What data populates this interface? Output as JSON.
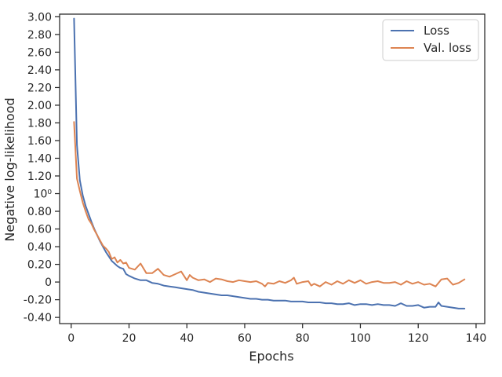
{
  "chart_data": {
    "type": "line",
    "title": "",
    "xlabel": "Epochs",
    "ylabel": "Negative log-likelihood",
    "xlim": [
      -4,
      143
    ],
    "ylim": [
      -0.47,
      3.03
    ],
    "x_ticks": [
      0,
      20,
      40,
      60,
      80,
      100,
      120,
      140
    ],
    "x_tick_labels": [
      "0",
      "20",
      "40",
      "60",
      "80",
      "100",
      "120",
      "140"
    ],
    "y_ticks": [
      -0.4,
      -0.2,
      0,
      0.2,
      0.4,
      0.6,
      0.8,
      1.0,
      1.2,
      1.4,
      1.6,
      1.8,
      2.0,
      2.2,
      2.4,
      2.6,
      2.8,
      3.0
    ],
    "y_tick_labels": [
      "-0.40",
      "-0.20",
      "0",
      "0.20",
      "0.40",
      "0.60",
      "0.80",
      "10⁰",
      "1.20",
      "1.40",
      "1.60",
      "1.80",
      "2.00",
      "2.20",
      "2.40",
      "2.60",
      "2.80",
      "3.00"
    ],
    "legend_position": "top-right",
    "grid": false,
    "series": [
      {
        "name": "Loss",
        "color": "#4c72b0",
        "x": [
          1,
          2,
          3,
          4,
          5,
          6,
          7,
          8,
          9,
          10,
          11,
          12,
          13,
          14,
          15,
          16,
          17,
          18,
          19,
          20,
          22,
          24,
          26,
          28,
          30,
          32,
          34,
          36,
          38,
          40,
          42,
          44,
          46,
          48,
          50,
          52,
          54,
          56,
          58,
          60,
          62,
          64,
          66,
          68,
          70,
          72,
          74,
          76,
          78,
          80,
          82,
          84,
          86,
          88,
          90,
          92,
          94,
          96,
          98,
          100,
          102,
          104,
          106,
          108,
          110,
          112,
          114,
          116,
          118,
          120,
          122,
          124,
          126,
          127,
          128,
          130,
          132,
          134,
          136
        ],
        "y": [
          2.98,
          1.55,
          1.15,
          0.98,
          0.86,
          0.77,
          0.68,
          0.6,
          0.53,
          0.46,
          0.4,
          0.34,
          0.29,
          0.24,
          0.21,
          0.18,
          0.16,
          0.15,
          0.09,
          0.07,
          0.04,
          0.02,
          0.02,
          -0.01,
          -0.02,
          -0.04,
          -0.05,
          -0.06,
          -0.07,
          -0.08,
          -0.09,
          -0.11,
          -0.12,
          -0.13,
          -0.14,
          -0.15,
          -0.15,
          -0.16,
          -0.17,
          -0.18,
          -0.19,
          -0.19,
          -0.2,
          -0.2,
          -0.21,
          -0.21,
          -0.21,
          -0.22,
          -0.22,
          -0.22,
          -0.23,
          -0.23,
          -0.23,
          -0.24,
          -0.24,
          -0.25,
          -0.25,
          -0.24,
          -0.26,
          -0.25,
          -0.25,
          -0.26,
          -0.25,
          -0.26,
          -0.26,
          -0.27,
          -0.24,
          -0.27,
          -0.27,
          -0.26,
          -0.29,
          -0.28,
          -0.28,
          -0.23,
          -0.27,
          -0.28,
          -0.29,
          -0.3,
          -0.3
        ]
      },
      {
        "name": "Val. loss",
        "color": "#dd8452",
        "x": [
          1,
          2,
          3,
          4,
          5,
          6,
          7,
          8,
          9,
          10,
          11,
          12,
          13,
          14,
          15,
          16,
          17,
          18,
          19,
          20,
          22,
          24,
          26,
          28,
          30,
          32,
          34,
          36,
          38,
          40,
          41,
          42,
          44,
          46,
          48,
          50,
          52,
          54,
          56,
          58,
          60,
          62,
          64,
          66,
          67,
          68,
          70,
          72,
          74,
          76,
          77,
          78,
          80,
          82,
          83,
          84,
          86,
          88,
          90,
          92,
          94,
          96,
          98,
          100,
          102,
          104,
          106,
          108,
          110,
          112,
          114,
          116,
          118,
          120,
          122,
          124,
          126,
          128,
          130,
          132,
          134,
          136
        ],
        "y": [
          1.81,
          1.17,
          1.03,
          0.9,
          0.8,
          0.71,
          0.66,
          0.59,
          0.53,
          0.47,
          0.41,
          0.38,
          0.34,
          0.26,
          0.28,
          0.22,
          0.25,
          0.21,
          0.22,
          0.16,
          0.14,
          0.21,
          0.1,
          0.1,
          0.15,
          0.08,
          0.06,
          0.09,
          0.12,
          0.02,
          0.08,
          0.05,
          0.02,
          0.03,
          0.0,
          0.04,
          0.03,
          0.01,
          0.0,
          0.02,
          0.01,
          0.0,
          0.01,
          -0.02,
          -0.05,
          -0.01,
          -0.02,
          0.01,
          -0.01,
          0.02,
          0.05,
          -0.02,
          0.0,
          0.01,
          -0.04,
          -0.02,
          -0.05,
          0.0,
          -0.03,
          0.01,
          -0.02,
          0.02,
          -0.01,
          0.02,
          -0.02,
          0.0,
          0.01,
          -0.01,
          -0.01,
          0.0,
          -0.03,
          0.01,
          -0.02,
          0.0,
          -0.03,
          -0.02,
          -0.05,
          0.03,
          0.04,
          -0.03,
          -0.01,
          0.03
        ]
      }
    ]
  }
}
